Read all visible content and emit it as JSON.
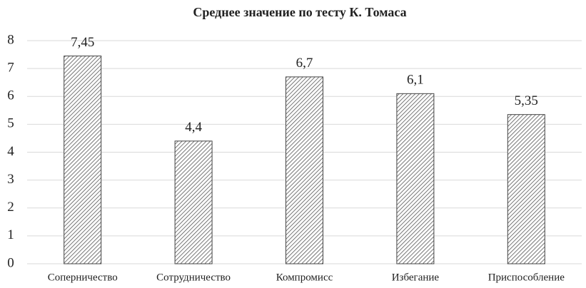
{
  "chart_data": {
    "type": "bar",
    "title": "Среднее значение по тесту К. Томаса",
    "categories": [
      "Соперничество",
      "Сотрудничество",
      "Компромисс",
      "Избегание",
      "Приспособление"
    ],
    "values": [
      7.45,
      4.4,
      6.7,
      6.1,
      5.35
    ],
    "value_labels": [
      "7,45",
      "4,4",
      "6,7",
      "6,1",
      "5,35"
    ],
    "color": "#555555",
    "ylim": [
      0,
      8
    ],
    "yticks": [
      0,
      1,
      2,
      3,
      4,
      5,
      6,
      7,
      8
    ],
    "grid": true
  }
}
